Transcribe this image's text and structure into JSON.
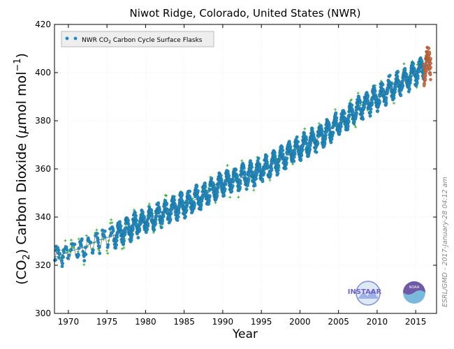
{
  "colors": {
    "flask": "#1f8ac0",
    "flask_edge": "#1b5f86",
    "flag": "#22aa22",
    "recent": "#c9704a",
    "smooth": "#808080",
    "grid": "#e8e8e8"
  },
  "chart_data": {
    "type": "scatter",
    "title": "Niwot Ridge, Colorado, United States (NWR)",
    "xlabel": "Year",
    "ylabel": "(CO2) Carbon Dioxide (μmol mol⁻¹)",
    "ylabel_parts": {
      "open": "(CO",
      "sub": "2",
      "close": ") Carbon Dioxide (",
      "mu": "μ",
      "unit": "mol mol",
      "sup": "−1",
      "end": ")"
    },
    "xlim": [
      1968.2,
      2017.7
    ],
    "ylim": [
      300,
      420
    ],
    "xticks": [
      1970,
      1975,
      1980,
      1985,
      1990,
      1995,
      2000,
      2005,
      2010,
      2015
    ],
    "yticks": [
      300,
      320,
      340,
      360,
      380,
      400,
      420
    ],
    "grid": true,
    "legend": {
      "position": "top-left",
      "label_parts": {
        "pre": "NWR CO",
        "sub": "2",
        "post": " Carbon Cycle Surface Flasks"
      }
    },
    "series": [
      {
        "name": "NWR CO2 Carbon Cycle Surface Flasks",
        "kind": "trend",
        "x": [
          1968.5,
          1970,
          1972,
          1974,
          1976,
          1978,
          1980,
          1982,
          1984,
          1986,
          1988,
          1990,
          1992,
          1994,
          1996,
          1998,
          2000,
          2002,
          2004,
          2006,
          2008,
          2010,
          2012,
          2014,
          2016.5
        ],
        "y": [
          323.5,
          325.5,
          327.5,
          330.5,
          332.5,
          335.5,
          338.5,
          341.0,
          344.0,
          346.5,
          350.0,
          354.0,
          356.0,
          358.0,
          361.0,
          365.0,
          369.0,
          372.0,
          376.5,
          381.0,
          385.5,
          389.5,
          394.0,
          397.5,
          403.5
        ],
        "seasonal_amplitude": 3.5
      }
    ],
    "recent_range": [
      2016.05,
      2016.95
    ],
    "smooth_line_range": [
      1968.2,
      1977.0
    ]
  },
  "credit": "ESRL/GMD - 2017-January-28 04:12 am",
  "logos": {
    "instaar": "INSTAAR",
    "noaa": "NOAA"
  }
}
